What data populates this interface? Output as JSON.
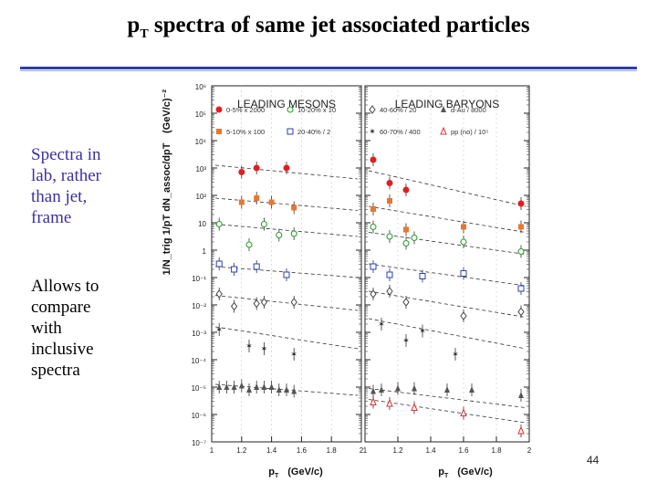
{
  "slide": {
    "title_main": "p",
    "title_sub": "T",
    "title_rest": " spectra of same jet associated particles",
    "note1": "Spectra in\nlab, rather\nthan jet,\nframe",
    "note2": "Allows to\ncompare\nwith\ninclusive\nspectra",
    "slide_number": "44"
  },
  "figure": {
    "y_axis_label": "1/N_trig 1/pT dN_assoc/dpT",
    "y_unit": "(GeV/c)⁻²",
    "y_ticks": [
      "10⁶",
      "10⁵",
      "10⁴",
      "10³",
      "10²",
      "10",
      "1",
      "10⁻¹",
      "10⁻²",
      "10⁻³",
      "10⁻⁴",
      "10⁻⁵",
      "10⁻⁶",
      "10⁻⁷"
    ],
    "x_ticks": [
      "1",
      "1.2",
      "1.4",
      "1.6",
      "1.8",
      "2"
    ],
    "x_label_sym": "p",
    "x_label_sub": "T",
    "x_label_unit": "(GeV/c)",
    "panels": [
      {
        "title": "LEADING MESONS",
        "legend": [
          "0-5% x 2000",
          "10-20% x 10",
          "5-10% x 100",
          "20-40% / 2"
        ]
      },
      {
        "title": "LEADING BARYONS",
        "legend": [
          "40-60% / 20",
          "d-Au / 8000",
          "60-70% / 400",
          "pp (no) / 10⁵"
        ]
      }
    ]
  },
  "chart_data": {
    "type": "scatter",
    "title": "pT spectra of same jet associated particles",
    "xlabel": "pT (GeV/c)",
    "ylabel": "1/N_trig 1/pT dN_assoc/dpT (GeV/c)^-2",
    "yscale": "log",
    "ylim_log10": [
      -7,
      6
    ],
    "xlim": [
      1,
      2
    ],
    "panels": [
      {
        "name": "LEADING MESONS",
        "series": [
          {
            "name": "0-5% x 2000",
            "color": "#e02020",
            "marker": "circle-filled",
            "x": [
              1.2,
              1.3,
              1.5
            ],
            "log10y": [
              2.85,
              3.0,
              3.0
            ],
            "fit_log10": [
              3.1,
              2.6
            ]
          },
          {
            "name": "5-10% x 100",
            "color": "#e8772d",
            "marker": "square-filled",
            "x": [
              1.2,
              1.3,
              1.4,
              1.55
            ],
            "log10y": [
              1.75,
              1.9,
              1.75,
              1.55
            ],
            "fit_log10": [
              1.9,
              1.45
            ]
          },
          {
            "name": "10-20% x 10",
            "color": "#2aa02a",
            "marker": "circle-open",
            "x": [
              1.05,
              1.25,
              1.35,
              1.45,
              1.55
            ],
            "log10y": [
              0.95,
              0.2,
              0.95,
              0.55,
              0.6
            ],
            "fit_log10": [
              0.95,
              0.5
            ]
          },
          {
            "name": "20-40% / 2",
            "color": "#2a3fb8",
            "marker": "square-open",
            "x": [
              1.05,
              1.15,
              1.3,
              1.5
            ],
            "log10y": [
              -0.5,
              -0.7,
              -0.6,
              -0.9
            ],
            "fit_log10": [
              -0.6,
              -1.0
            ]
          },
          {
            "name": "40-60% / 20",
            "color": "#444444",
            "marker": "diamond-open",
            "x": [
              1.05,
              1.15,
              1.3,
              1.35,
              1.55
            ],
            "log10y": [
              -1.6,
              -2.05,
              -1.95,
              -1.9,
              -1.9
            ],
            "fit_log10": [
              -1.65,
              -2.2
            ]
          },
          {
            "name": "60-70% / 400",
            "color": "#222222",
            "marker": "star",
            "x": [
              1.05,
              1.25,
              1.35,
              1.55
            ],
            "log10y": [
              -2.9,
              -3.5,
              -3.6,
              -3.8
            ],
            "fit_log10": [
              -2.8,
              -3.6
            ]
          },
          {
            "name": "d-Au / 8000",
            "color": "#555555",
            "marker": "triangle-filled",
            "x": [
              1.05,
              1.1,
              1.15,
              1.2,
              1.25,
              1.3,
              1.35,
              1.4,
              1.45,
              1.5,
              1.55
            ],
            "log10y": [
              -5.0,
              -5.0,
              -5.0,
              -4.95,
              -5.1,
              -5.0,
              -5.0,
              -5.0,
              -5.1,
              -5.1,
              -5.15
            ],
            "fit_log10": [
              -4.9,
              -5.3
            ]
          }
        ]
      },
      {
        "name": "LEADING BARYONS",
        "series": [
          {
            "name": "0-5% x 2000",
            "color": "#e02020",
            "marker": "circle-filled",
            "x": [
              1.05,
              1.15,
              1.25,
              1.95
            ],
            "log10y": [
              3.3,
              2.45,
              2.2,
              1.7
            ],
            "fit_log10": [
              2.9,
              1.6
            ]
          },
          {
            "name": "5-10% x 100",
            "color": "#e8772d",
            "marker": "square-filled",
            "x": [
              1.05,
              1.15,
              1.25,
              1.6,
              1.95
            ],
            "log10y": [
              1.5,
              1.8,
              0.75,
              0.85,
              0.85
            ],
            "fit_log10": [
              1.6,
              0.65
            ]
          },
          {
            "name": "10-20% x 10",
            "color": "#2aa02a",
            "marker": "circle-open",
            "x": [
              1.05,
              1.15,
              1.25,
              1.3,
              1.6,
              1.95
            ],
            "log10y": [
              0.85,
              0.5,
              0.25,
              0.45,
              0.3,
              -0.05
            ],
            "fit_log10": [
              0.65,
              -0.15
            ]
          },
          {
            "name": "20-40% / 2",
            "color": "#2a3fb8",
            "marker": "square-open",
            "x": [
              1.05,
              1.15,
              1.35,
              1.6,
              1.95
            ],
            "log10y": [
              -0.6,
              -0.9,
              -0.95,
              -0.85,
              -1.4
            ],
            "fit_log10": [
              -0.5,
              -1.3
            ]
          },
          {
            "name": "40-60% / 20",
            "color": "#444444",
            "marker": "diamond-open",
            "x": [
              1.05,
              1.15,
              1.25,
              1.6,
              1.95
            ],
            "log10y": [
              -1.6,
              -1.5,
              -1.9,
              -2.4,
              -2.25
            ],
            "fit_log10": [
              -1.5,
              -2.45
            ]
          },
          {
            "name": "60-70% / 400",
            "color": "#222222",
            "marker": "star",
            "x": [
              1.1,
              1.25,
              1.35,
              1.55
            ],
            "log10y": [
              -2.7,
              -3.3,
              -2.95,
              -3.8
            ],
            "fit_log10": [
              -2.5,
              -3.6
            ]
          },
          {
            "name": "d-Au / 8000",
            "color": "#555555",
            "marker": "triangle-filled",
            "x": [
              1.05,
              1.1,
              1.2,
              1.3,
              1.5,
              1.65,
              1.95
            ],
            "log10y": [
              -5.15,
              -5.1,
              -5.05,
              -5.05,
              -5.1,
              -5.1,
              -5.3
            ],
            "fit_log10": [
              -5.05,
              -5.75
            ]
          },
          {
            "name": "pp (no) / 10⁵",
            "color": "#e03030",
            "marker": "triangle-open",
            "x": [
              1.05,
              1.15,
              1.3,
              1.6,
              1.95
            ],
            "log10y": [
              -5.55,
              -5.6,
              -5.75,
              -5.95,
              -6.6
            ],
            "fit_log10": [
              -5.45,
              -6.3
            ]
          }
        ]
      }
    ]
  }
}
